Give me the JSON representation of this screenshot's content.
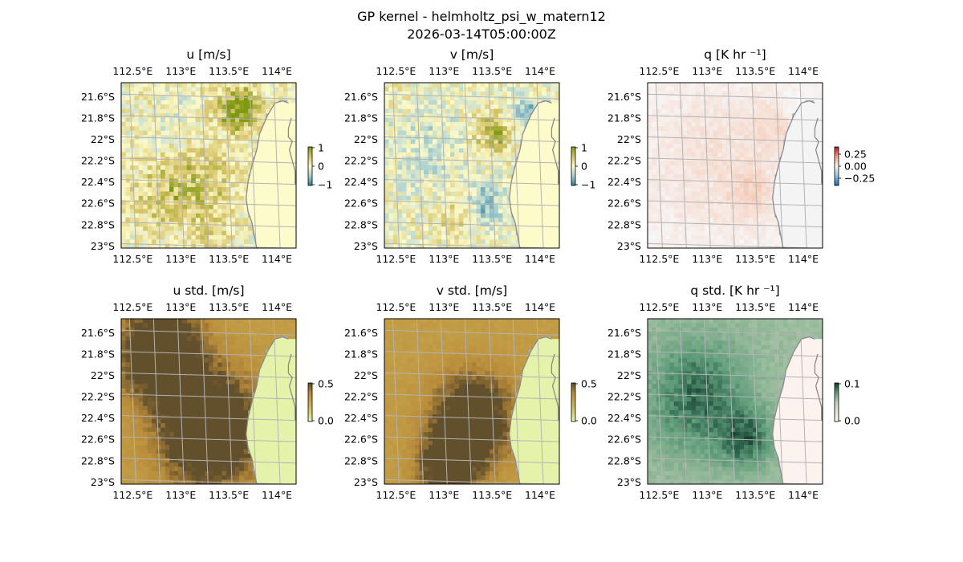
{
  "figure": {
    "title": "GP kernel - helmholtz_psi_w_matern12",
    "subtitle": "2026-03-14T05:00:00Z"
  },
  "map": {
    "lon_ticks": [
      "112.5°E",
      "113°E",
      "113.5°E",
      "114°E"
    ],
    "lat_ticks": [
      "21.6°S",
      "21.8°S",
      "22°S",
      "22.2°S",
      "22.4°S",
      "22.6°S",
      "22.8°S",
      "23°S"
    ],
    "lon_values": [
      112.5,
      113.0,
      113.5,
      114.0
    ],
    "lat_values": [
      -21.6,
      -21.8,
      -22.0,
      -22.2,
      -22.4,
      -22.6,
      -22.8,
      -23.0
    ],
    "extent": {
      "lon": [
        112.38,
        114.2
      ],
      "lat": [
        -21.47,
        -23.02
      ]
    },
    "colors": {
      "ocean_edge": "#9db4d9",
      "coast": "#8a8a8a",
      "grid": "#b3b3b3"
    }
  },
  "chart_data": [
    {
      "type": "heatmap",
      "title": "u [m/s]",
      "field": "u",
      "colorbar": {
        "ticks": [
          "1",
          "0",
          "−1"
        ],
        "range": [
          -1,
          1
        ]
      },
      "colormap": [
        "#2f7f95",
        "#a9cfd0",
        "#fcfac9",
        "#d7c46a",
        "#7f9a12"
      ],
      "land_color": "#fdfbca",
      "features": [
        {
          "lon": 113.15,
          "lat": -22.35,
          "value": 0.55,
          "radius": 0.42
        },
        {
          "lon": 113.65,
          "lat": -21.72,
          "value": 0.85,
          "radius": 0.18
        },
        {
          "lon": 113.5,
          "lat": -21.7,
          "value": 0.45,
          "radius": 0.25
        },
        {
          "lon": 112.75,
          "lat": -22.55,
          "value": 0.35,
          "radius": 0.3
        },
        {
          "lon": 113.0,
          "lat": -21.9,
          "value": -0.22,
          "radius": 0.35
        },
        {
          "lon": 112.6,
          "lat": -21.7,
          "value": 0.12,
          "radius": 0.25
        },
        {
          "lon": 113.3,
          "lat": -22.85,
          "value": 0.25,
          "radius": 0.22
        }
      ]
    },
    {
      "type": "heatmap",
      "title": "v [m/s]",
      "field": "v",
      "colorbar": {
        "ticks": [
          "1",
          "0",
          "−1"
        ],
        "range": [
          -1,
          1
        ]
      },
      "colormap": [
        "#2f7f95",
        "#a9cfd0",
        "#fcfac9",
        "#d7c46a",
        "#7f9a12"
      ],
      "land_color": "#fdfbca",
      "features": [
        {
          "lon": 113.5,
          "lat": -21.95,
          "value": 0.75,
          "radius": 0.2
        },
        {
          "lon": 113.45,
          "lat": -22.6,
          "value": -0.65,
          "radius": 0.18
        },
        {
          "lon": 113.88,
          "lat": -21.75,
          "value": -0.75,
          "radius": 0.14
        },
        {
          "lon": 112.8,
          "lat": -22.1,
          "value": -0.25,
          "radius": 0.45
        },
        {
          "lon": 113.05,
          "lat": -22.75,
          "value": 0.3,
          "radius": 0.22
        },
        {
          "lon": 112.6,
          "lat": -21.6,
          "value": 0.1,
          "radius": 0.22
        }
      ]
    },
    {
      "type": "heatmap",
      "title": "q [K hr ⁻¹]",
      "field": "q",
      "colorbar": {
        "ticks": [
          "0.25",
          "0.00",
          "−0.25"
        ],
        "range": [
          -0.5,
          0.5
        ]
      },
      "colormap": [
        "#2166ac",
        "#92c5de",
        "#f7f7f7",
        "#f4a582",
        "#b2182b"
      ],
      "land_color": "#f4f4f4",
      "features": [
        {
          "lon": 113.1,
          "lat": -22.2,
          "value": 0.07,
          "radius": 0.8
        },
        {
          "lon": 113.45,
          "lat": -22.5,
          "value": 0.08,
          "radius": 0.2
        },
        {
          "lon": 113.7,
          "lat": -21.9,
          "value": 0.06,
          "radius": 0.25
        },
        {
          "lon": 113.88,
          "lat": -21.72,
          "value": -0.04,
          "radius": 0.1
        }
      ]
    },
    {
      "type": "heatmap",
      "title": "u std. [m/s]",
      "field": "u_std",
      "colorbar": {
        "ticks": [
          "0.5",
          "0.0"
        ],
        "range": [
          0,
          0.5
        ]
      },
      "colormap": [
        "#e7f5b5",
        "#d5cc74",
        "#c9a84d",
        "#b88b3a",
        "#5b4a2a"
      ],
      "land_color": "#e5f3aa",
      "features": [
        {
          "lon": 113.3,
          "lat": -22.5,
          "value": 0.43,
          "radius": 0.5
        },
        {
          "lon": 112.8,
          "lat": -21.8,
          "value": 0.44,
          "radius": 0.4
        }
      ]
    },
    {
      "type": "heatmap",
      "title": "v std. [m/s]",
      "field": "v_std",
      "colorbar": {
        "ticks": [
          "0.5",
          "0.0"
        ],
        "range": [
          0,
          0.5
        ]
      },
      "colormap": [
        "#e7f5b5",
        "#d5cc74",
        "#c9a84d",
        "#b88b3a",
        "#5b4a2a"
      ],
      "land_color": "#e5f3aa",
      "features": [
        {
          "lon": 113.05,
          "lat": -22.85,
          "value": 0.33,
          "radius": 0.3
        },
        {
          "lon": 113.3,
          "lat": -22.4,
          "value": 0.36,
          "radius": 0.4
        }
      ]
    },
    {
      "type": "heatmap",
      "title": "q std. [K hr ⁻¹]",
      "field": "q_std",
      "colorbar": {
        "ticks": [
          "0.1",
          "0.0"
        ],
        "range": [
          0,
          0.1
        ]
      },
      "colormap": [
        "#fff4ef",
        "#e4e7dc",
        "#c3d3b6",
        "#5f9c7a",
        "#0c3a2a"
      ],
      "land_color": "#fdf3ee",
      "features": [
        {
          "lon": 112.9,
          "lat": -22.2,
          "value": 0.028,
          "radius": 0.5
        },
        {
          "lon": 113.4,
          "lat": -22.6,
          "value": 0.03,
          "radius": 0.25
        }
      ]
    }
  ]
}
